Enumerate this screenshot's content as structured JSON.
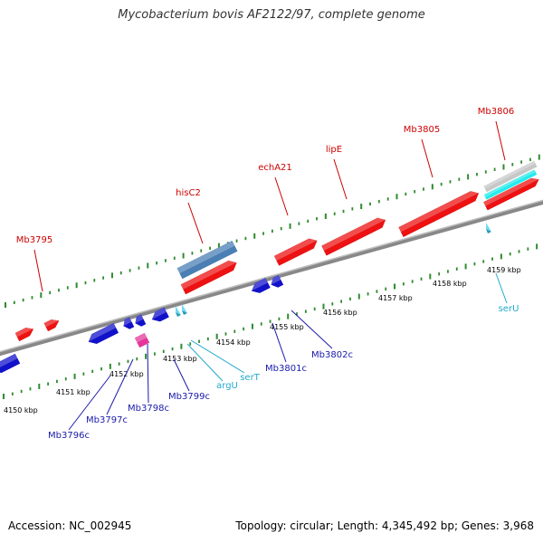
{
  "title": "Mycobacterium bovis AF2122/97, complete genome",
  "footer": {
    "accession": "Accession: NC_002945",
    "summary": "Topology: circular; Length: 4,345,492 bp; Genes: 3,968"
  },
  "colors": {
    "backbone": "#888888",
    "tick": "#2e8b2e",
    "forward_cds": "#ee1111",
    "forward_label": "#cc0000",
    "reverse_cds": "#1111cc",
    "reverse_label": "#1a1aaa",
    "trna": "#33ccee",
    "trna_label": "#22aacc",
    "misc_blue": "#4a7fb5",
    "misc_pink": "#e6359a",
    "misc_gray": "#c8c8c8",
    "misc_cyan": "#22eeee"
  },
  "scale_labels": [
    "4150 kbp",
    "4151 kbp",
    "4152 kbp",
    "4153 kbp",
    "4154 kbp",
    "4155 kbp",
    "4156 kbp",
    "4157 kbp",
    "4158 kbp",
    "4159 kbp"
  ],
  "forward_genes": [
    "Mb3795",
    "hisC2",
    "echA21",
    "lipE",
    "Mb3805",
    "Mb3806"
  ],
  "reverse_genes": [
    "Mb3796c",
    "Mb3797c",
    "Mb3798c",
    "Mb3799c",
    "Mb3801c",
    "Mb3802c"
  ],
  "trna_genes": [
    "argU",
    "serT",
    "serU"
  ]
}
